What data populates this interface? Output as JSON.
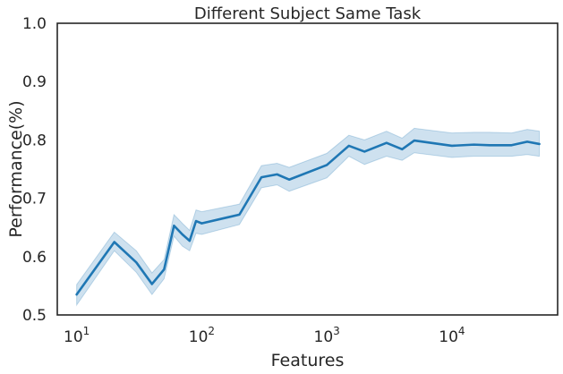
{
  "chart_data": {
    "type": "line",
    "title": "Different Subject Same Task",
    "xlabel": "Features",
    "ylabel": "Performance(%)",
    "x_scale": "log",
    "xlim": [
      7,
      70000
    ],
    "ylim": [
      0.5,
      1.0
    ],
    "yticks": [
      {
        "value": 0.5,
        "label": "0.5"
      },
      {
        "value": 0.6,
        "label": "0.6"
      },
      {
        "value": 0.7,
        "label": "0.7"
      },
      {
        "value": 0.8,
        "label": "0.8"
      },
      {
        "value": 0.9,
        "label": "0.9"
      },
      {
        "value": 1.0,
        "label": "1.0"
      }
    ],
    "xticks": [
      {
        "value": 10,
        "base": "10",
        "exp": "1"
      },
      {
        "value": 100,
        "base": "10",
        "exp": "2"
      },
      {
        "value": 1000,
        "base": "10",
        "exp": "3"
      },
      {
        "value": 10000,
        "base": "10",
        "exp": "4"
      }
    ],
    "grid": false,
    "colors": {
      "line": "#1f77b4",
      "band": "#1f77b4",
      "axes": "#262626"
    },
    "series": [
      {
        "x": [
          10,
          20,
          30,
          40,
          50,
          60,
          70,
          80,
          90,
          100,
          200,
          300,
          400,
          500,
          1000,
          1500,
          2000,
          3000,
          4000,
          5000,
          10000,
          15000,
          20000,
          30000,
          40000,
          50000
        ],
        "y": [
          0.535,
          0.625,
          0.59,
          0.553,
          0.578,
          0.653,
          0.638,
          0.627,
          0.661,
          0.657,
          0.672,
          0.736,
          0.741,
          0.732,
          0.757,
          0.79,
          0.78,
          0.795,
          0.784,
          0.799,
          0.79,
          0.792,
          0.791,
          0.791,
          0.797,
          0.793
        ],
        "ci_low": [
          0.517,
          0.61,
          0.573,
          0.535,
          0.562,
          0.635,
          0.618,
          0.61,
          0.64,
          0.638,
          0.655,
          0.718,
          0.723,
          0.712,
          0.735,
          0.772,
          0.758,
          0.772,
          0.765,
          0.778,
          0.77,
          0.772,
          0.772,
          0.772,
          0.775,
          0.772
        ],
        "ci_high": [
          0.552,
          0.642,
          0.61,
          0.572,
          0.595,
          0.672,
          0.657,
          0.645,
          0.68,
          0.677,
          0.69,
          0.756,
          0.76,
          0.753,
          0.777,
          0.808,
          0.8,
          0.815,
          0.803,
          0.82,
          0.812,
          0.813,
          0.813,
          0.812,
          0.818,
          0.815
        ]
      }
    ]
  }
}
